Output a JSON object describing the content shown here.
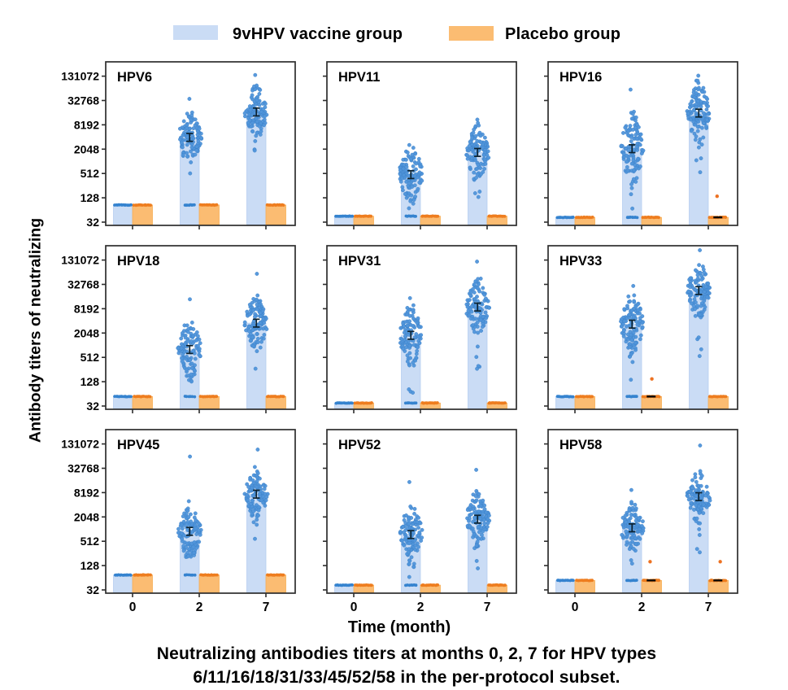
{
  "legend": {
    "vaccine": "9vHPV vaccine group",
    "placebo": "Placebo group"
  },
  "axes": {
    "y_label": "Antibody titers of neutralizing",
    "x_label": "Time (month)"
  },
  "caption": {
    "line1": "Neutralizing antibodies titers at months 0, 2, 7 for HPV types",
    "line2": "6/11/16/18/31/33/45/52/58 in the per-protocol subset."
  },
  "colors": {
    "bar_vaccine_fill": "#cadcf5",
    "bar_vaccine_edge": "#b6cff0",
    "bar_placebo_fill": "#fbbc72",
    "bar_placebo_edge": "#f7ae56",
    "dot_vaccine": "#5095da",
    "dot_vaccine_row": "#3583cf",
    "dot_placebo_row": "#ee7d1f",
    "dot_placebo_outlier": "#ed7222",
    "error_bar": "#0c2230",
    "axis": "#2d2d2d",
    "text": "#000000",
    "gm_dash": "#0a0a0a"
  },
  "chart_data": {
    "type": "bar",
    "subtype": "grouped bars with jittered scatter overlay, 3x3 small multiples",
    "y_scale": "log, factor 4 per tick",
    "y_ticks": [
      32,
      128,
      512,
      2048,
      8192,
      32768,
      131072
    ],
    "ylim": [
      26,
      300000
    ],
    "categories": [
      "0",
      "2",
      "7"
    ],
    "series_names": [
      "9vHPV vaccine group",
      "Placebo group"
    ],
    "error_factor": 1.25,
    "panels": [
      {
        "name": "HPV6",
        "seed": 11,
        "vaccine_gmt": [
          85,
          4000,
          17000
        ],
        "placebo_gmt": [
          85,
          85,
          85
        ],
        "scatter": {
          "m2": {
            "n": 112,
            "min": 500,
            "max": 36000,
            "sigma": 0.55
          },
          "m7": {
            "n": 112,
            "min": 1800,
            "max": 140000,
            "sigma": 0.5
          }
        },
        "floor_dots_m2": 8,
        "floor_dots_m7": 0,
        "placebo_outliers": [],
        "placebo_gm_dash": []
      },
      {
        "name": "HPV11",
        "seed": 23,
        "vaccine_gmt": [
          45,
          480,
          1700
        ],
        "placebo_gmt": [
          45,
          45,
          45
        ],
        "scatter": {
          "m2": {
            "n": 110,
            "min": 64,
            "max": 2600,
            "sigma": 0.6
          },
          "m7": {
            "n": 110,
            "min": 130,
            "max": 11000,
            "sigma": 0.55
          }
        },
        "floor_dots_m2": 8,
        "floor_dots_m7": 0,
        "placebo_outliers": [],
        "placebo_gm_dash": []
      },
      {
        "name": "HPV16",
        "seed": 37,
        "vaccine_gmt": [
          42,
          2100,
          16000
        ],
        "placebo_gmt": [
          42,
          42,
          42
        ],
        "scatter": {
          "m2": {
            "n": 114,
            "min": 64,
            "max": 61000,
            "sigma": 0.68
          },
          "m7": {
            "n": 114,
            "min": 500,
            "max": 135000,
            "sigma": 0.6
          }
        },
        "floor_dots_m2": 9,
        "floor_dots_m7": 0,
        "placebo_outliers": [
          {
            "month": "7",
            "value": 140
          }
        ],
        "placebo_gm_dash": [
          "7"
        ]
      },
      {
        "name": "HPV18",
        "seed": 47,
        "vaccine_gmt": [
          55,
          800,
          3600
        ],
        "placebo_gmt": [
          55,
          55,
          55
        ],
        "scatter": {
          "m2": {
            "n": 108,
            "min": 128,
            "max": 14000,
            "sigma": 0.6
          },
          "m7": {
            "n": 108,
            "min": 256,
            "max": 60000,
            "sigma": 0.55
          }
        },
        "floor_dots_m2": 6,
        "floor_dots_m7": 0,
        "placebo_outliers": [],
        "placebo_gm_dash": []
      },
      {
        "name": "HPV31",
        "seed": 59,
        "vaccine_gmt": [
          38,
          1800,
          9000
        ],
        "placebo_gmt": [
          38,
          38,
          38
        ],
        "scatter": {
          "m2": {
            "n": 110,
            "min": 64,
            "max": 15000,
            "sigma": 0.6
          },
          "m7": {
            "n": 110,
            "min": 256,
            "max": 120000,
            "sigma": 0.55
          }
        },
        "floor_dots_m2": 7,
        "floor_dots_m7": 0,
        "placebo_outliers": [],
        "placebo_gm_dash": []
      },
      {
        "name": "HPV33",
        "seed": 67,
        "vaccine_gmt": [
          55,
          3400,
          23000
        ],
        "placebo_gmt": [
          55,
          55,
          55
        ],
        "scatter": {
          "m2": {
            "n": 112,
            "min": 128,
            "max": 30000,
            "sigma": 0.6
          },
          "m7": {
            "n": 112,
            "min": 512,
            "max": 230000,
            "sigma": 0.55
          }
        },
        "floor_dots_m2": 8,
        "floor_dots_m7": 0,
        "placebo_outliers": [
          {
            "month": "2",
            "value": 150
          }
        ],
        "placebo_gm_dash": [
          "2"
        ]
      },
      {
        "name": "HPV45",
        "seed": 79,
        "vaccine_gmt": [
          75,
          900,
          7500
        ],
        "placebo_gmt": [
          75,
          75,
          75
        ],
        "scatter": {
          "m2": {
            "n": 108,
            "min": 200,
            "max": 64000,
            "sigma": 0.55
          },
          "m7": {
            "n": 108,
            "min": 512,
            "max": 95000,
            "sigma": 0.5
          }
        },
        "floor_dots_m2": 6,
        "floor_dots_m7": 0,
        "placebo_outliers": [],
        "placebo_gm_dash": []
      },
      {
        "name": "HPV52",
        "seed": 89,
        "vaccine_gmt": [
          42,
          750,
          1800
        ],
        "placebo_gmt": [
          42,
          42,
          42
        ],
        "scatter": {
          "m2": {
            "n": 110,
            "min": 64,
            "max": 15000,
            "sigma": 0.6
          },
          "m7": {
            "n": 110,
            "min": 100,
            "max": 30000,
            "sigma": 0.55
          }
        },
        "floor_dots_m2": 7,
        "floor_dots_m7": 0,
        "placebo_outliers": [],
        "placebo_gm_dash": []
      },
      {
        "name": "HPV58",
        "seed": 97,
        "vaccine_gmt": [
          55,
          1100,
          6500
        ],
        "placebo_gmt": [
          55,
          55,
          55
        ],
        "scatter": {
          "m2": {
            "n": 110,
            "min": 128,
            "max": 9500,
            "sigma": 0.5
          },
          "m7": {
            "n": 110,
            "min": 256,
            "max": 120000,
            "sigma": 0.5
          }
        },
        "floor_dots_m2": 7,
        "floor_dots_m7": 0,
        "placebo_outliers": [
          {
            "month": "2",
            "value": 160
          },
          {
            "month": "7",
            "value": 160
          }
        ],
        "placebo_gm_dash": [
          "2",
          "7"
        ]
      }
    ],
    "title": "",
    "xlabel": "Time (month)",
    "ylabel": "Antibody titers of neutralizing"
  }
}
